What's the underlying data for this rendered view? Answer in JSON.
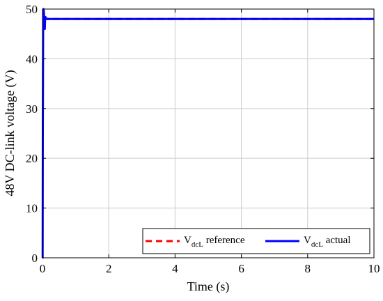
{
  "chart_data": {
    "type": "line",
    "xlabel": "Time (s)",
    "ylabel": "48V DC-link voltage (V)",
    "xlim": [
      0,
      10
    ],
    "ylim": [
      0,
      50
    ],
    "xticks": [
      0,
      2,
      4,
      6,
      8,
      10
    ],
    "yticks": [
      0,
      10,
      20,
      30,
      40,
      50
    ],
    "grid": true,
    "legend_position": "bottom-right",
    "series": [
      {
        "name": "V_dcL reference",
        "label_main": "V",
        "label_sub": "dcL",
        "label_rest": " reference",
        "color": "#ff0000",
        "style": "dashed",
        "x": [
          0,
          10
        ],
        "y": [
          48,
          48
        ]
      },
      {
        "name": "V_dcL actual",
        "label_main": "V",
        "label_sub": "dcL",
        "label_rest": " actual",
        "color": "#0000ff",
        "style": "solid",
        "x": [
          0,
          0.005,
          0.01,
          0.02,
          0.03,
          0.04,
          0.05,
          0.06,
          0.07,
          0.08,
          0.09,
          0.1,
          0.12,
          0.15,
          10
        ],
        "y": [
          0,
          0,
          24,
          46,
          50,
          49.5,
          48.5,
          48,
          46,
          48,
          48.4,
          48,
          48.1,
          48,
          48
        ]
      }
    ]
  }
}
